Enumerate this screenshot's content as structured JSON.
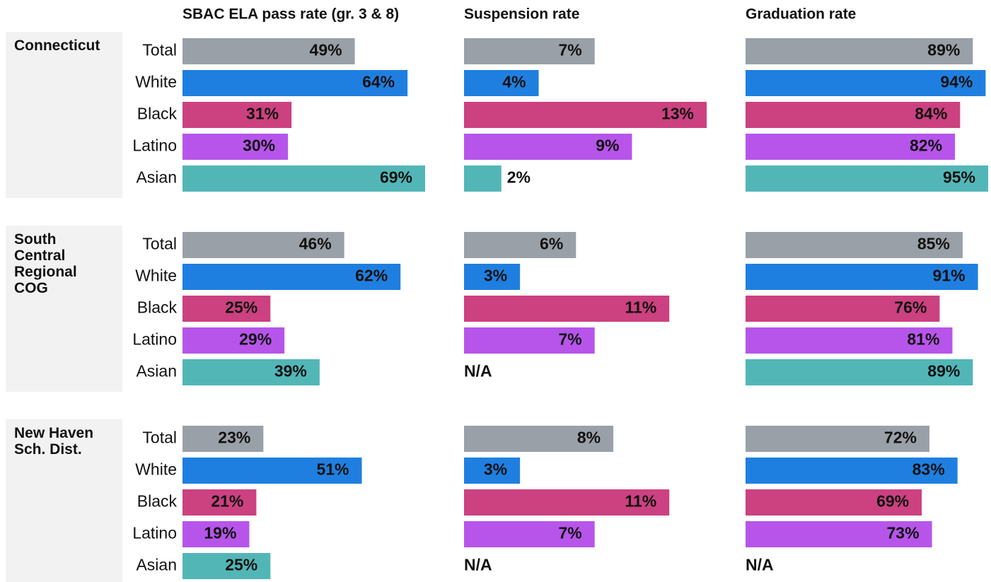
{
  "chart_data": {
    "type": "bar",
    "columns": [
      "SBAC ELA pass rate (gr. 3 & 8)",
      "Suspension rate",
      "Graduation rate"
    ],
    "categories": [
      "Total",
      "White",
      "Black",
      "Latino",
      "Asian"
    ],
    "colors": [
      "#9aa0a8",
      "#1f7fe0",
      "#cc4180",
      "#b755ea",
      "#52b6b7"
    ],
    "rows": [
      {
        "name": "Connecticut",
        "values": [
          [
            49,
            64,
            31,
            30,
            69
          ],
          [
            7,
            4,
            13,
            9,
            2
          ],
          [
            89,
            94,
            84,
            82,
            95
          ]
        ],
        "value_labels": [
          [
            "49%",
            "64%",
            "31%",
            "30%",
            "69%"
          ],
          [
            "7%",
            "4%",
            "13%",
            "9%",
            "2%"
          ],
          [
            "89%",
            "94%",
            "84%",
            "82%",
            "95%"
          ]
        ]
      },
      {
        "name": "South Central Regional COG",
        "values": [
          [
            46,
            62,
            25,
            29,
            39
          ],
          [
            6,
            3,
            11,
            7,
            null
          ],
          [
            85,
            91,
            76,
            81,
            89
          ]
        ],
        "value_labels": [
          [
            "46%",
            "62%",
            "25%",
            "29%",
            "39%"
          ],
          [
            "6%",
            "3%",
            "11%",
            "7%",
            "N/A"
          ],
          [
            "85%",
            "91%",
            "76%",
            "81%",
            "89%"
          ]
        ]
      },
      {
        "name": "New Haven Sch. Dist.",
        "values": [
          [
            23,
            51,
            21,
            19,
            25
          ],
          [
            8,
            3,
            11,
            7,
            null
          ],
          [
            72,
            83,
            69,
            73,
            null
          ]
        ],
        "value_labels": [
          [
            "23%",
            "51%",
            "21%",
            "19%",
            "25%"
          ],
          [
            "8%",
            "3%",
            "11%",
            "7%",
            "N/A"
          ],
          [
            "72%",
            "83%",
            "69%",
            "73%",
            "N/A"
          ]
        ]
      }
    ]
  }
}
